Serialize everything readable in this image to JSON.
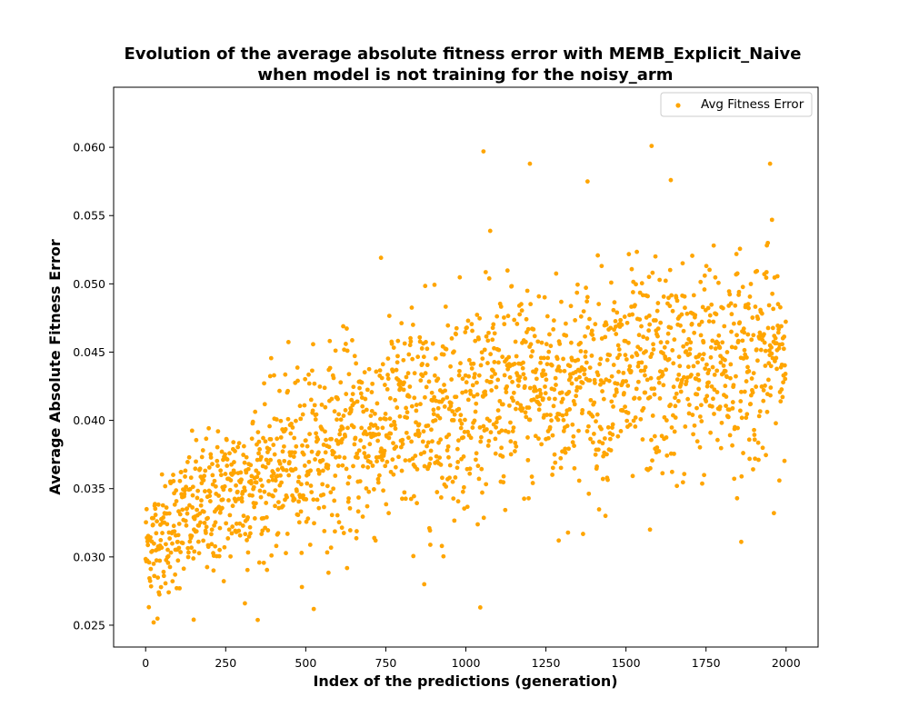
{
  "chart_data": {
    "type": "scatter",
    "title_line1": "Evolution of the average absolute fitness error with MEMB_Explicit_Naive",
    "title_line2": "when model is not training for the noisy_arm",
    "xlabel": "Index of the predictions (generation)",
    "ylabel": "Average Absolute Fitness Error",
    "xlim": [
      -100,
      2100
    ],
    "ylim": [
      0.0234,
      0.0644
    ],
    "x_ticks": [
      0,
      250,
      500,
      750,
      1000,
      1250,
      1500,
      1750,
      2000
    ],
    "y_ticks": [
      0.025,
      0.03,
      0.035,
      0.04,
      0.045,
      0.05,
      0.055,
      0.06
    ],
    "x_tick_labels": [
      "0",
      "250",
      "500",
      "750",
      "1000",
      "1250",
      "1500",
      "1750",
      "2000"
    ],
    "y_tick_labels": [
      "0.025",
      "0.030",
      "0.035",
      "0.040",
      "0.045",
      "0.050",
      "0.055",
      "0.060"
    ],
    "grid": false,
    "legend_position": "top-right",
    "legend_label": "Avg Fitness Error",
    "series": [
      {
        "name": "Avg Fitness Error",
        "color": "#ffa500",
        "trend": {
          "description": "approximate mean trend of ~2000 points",
          "x": [
            0,
            100,
            250,
            500,
            750,
            1000,
            1250,
            1500,
            1750,
            2000
          ],
          "y": [
            0.0305,
            0.0325,
            0.0345,
            0.0375,
            0.0395,
            0.0415,
            0.0425,
            0.0432,
            0.044,
            0.0448
          ]
        },
        "spread": 0.0045,
        "count": 2000,
        "notable_points": [
          {
            "x": 25,
            "y": 0.0252
          },
          {
            "x": 150,
            "y": 0.0254
          },
          {
            "x": 310,
            "y": 0.0266
          },
          {
            "x": 870,
            "y": 0.028
          },
          {
            "x": 1055,
            "y": 0.0597
          },
          {
            "x": 1200,
            "y": 0.0588
          },
          {
            "x": 1580,
            "y": 0.0601
          },
          {
            "x": 1950,
            "y": 0.0588
          },
          {
            "x": 1640,
            "y": 0.0576
          },
          {
            "x": 1380,
            "y": 0.0575
          },
          {
            "x": 1575,
            "y": 0.032
          },
          {
            "x": 1290,
            "y": 0.0312
          },
          {
            "x": 1860,
            "y": 0.0311
          },
          {
            "x": 925,
            "y": 0.0308
          }
        ]
      }
    ]
  }
}
